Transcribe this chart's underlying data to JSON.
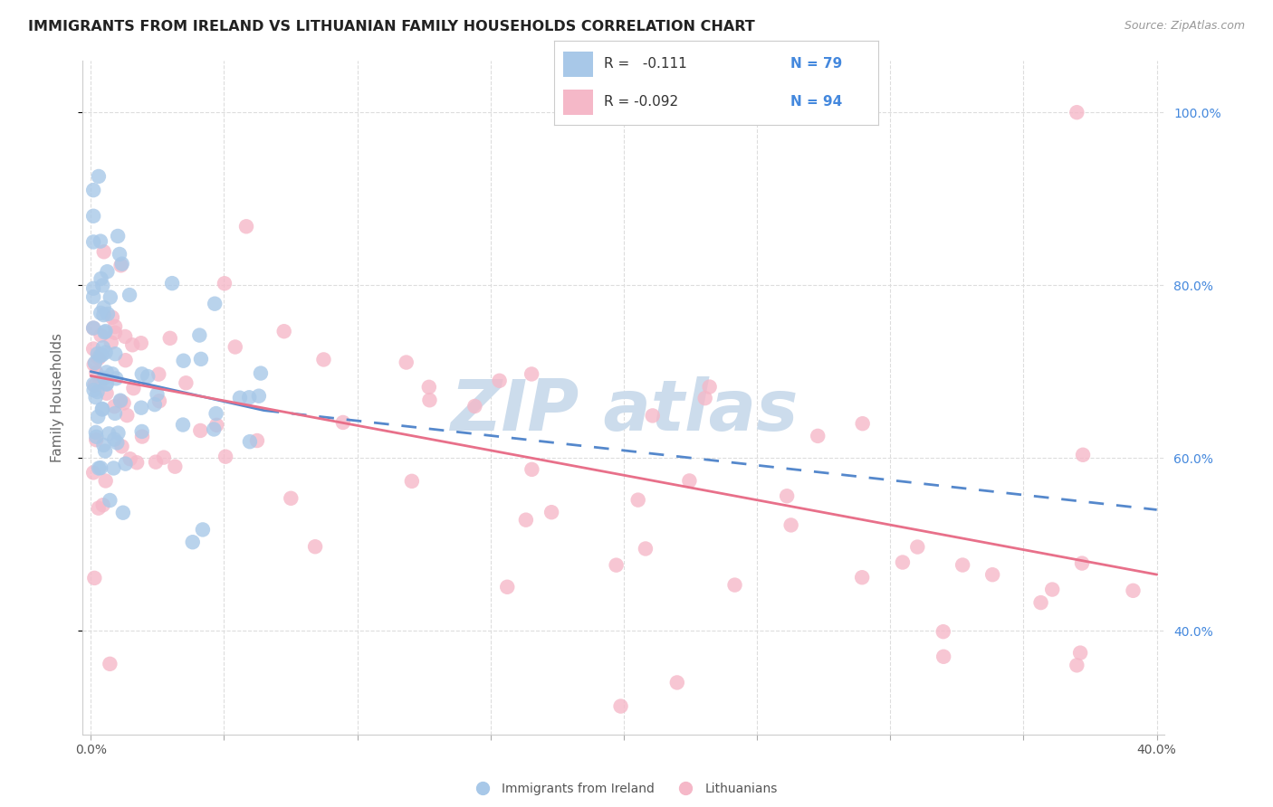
{
  "title": "IMMIGRANTS FROM IRELAND VS LITHUANIAN FAMILY HOUSEHOLDS CORRELATION CHART",
  "source": "Source: ZipAtlas.com",
  "ylabel": "Family Households",
  "color_ireland": "#a8c8e8",
  "color_lithuania": "#f5b8c8",
  "color_ireland_line": "#5588cc",
  "color_lithuania_line": "#e8708a",
  "color_title": "#222222",
  "color_source": "#999999",
  "color_axis_right": "#4488dd",
  "color_grid": "#dddddd",
  "background_color": "#ffffff",
  "watermark_color": "#ccdcec",
  "figsize": [
    14.06,
    8.92
  ],
  "dpi": 100,
  "legend_R1": "R =   -0.111",
  "legend_N1": "N = 79",
  "legend_R2": "R = -0.092",
  "legend_N2": "N = 94",
  "legend_label_1": "Immigrants from Ireland",
  "legend_label_2": "Lithuanians",
  "xlim": [
    0.0,
    0.4
  ],
  "ylim": [
    0.28,
    1.06
  ],
  "y_ticks": [
    0.4,
    0.6,
    0.8,
    1.0
  ],
  "y_tick_labels": [
    "40.0%",
    "60.0%",
    "80.0%",
    "100.0%"
  ],
  "x_ticks": [
    0.0,
    0.05,
    0.1,
    0.15,
    0.2,
    0.25,
    0.3,
    0.35,
    0.4
  ],
  "x_tick_labels": [
    "0.0%",
    "",
    "",
    "",
    "",
    "",
    "",
    "",
    "40.0%"
  ],
  "ireland_trend_x0": 0.0,
  "ireland_trend_y0": 0.7,
  "ireland_trend_x1": 0.065,
  "ireland_trend_y1": 0.655,
  "ireland_trend_dash_x0": 0.065,
  "ireland_trend_dash_y0": 0.655,
  "ireland_trend_dash_x1": 0.4,
  "ireland_trend_dash_y1": 0.54,
  "lith_trend_x0": 0.0,
  "lith_trend_y0": 0.695,
  "lith_trend_x1": 0.4,
  "lith_trend_y1": 0.465
}
